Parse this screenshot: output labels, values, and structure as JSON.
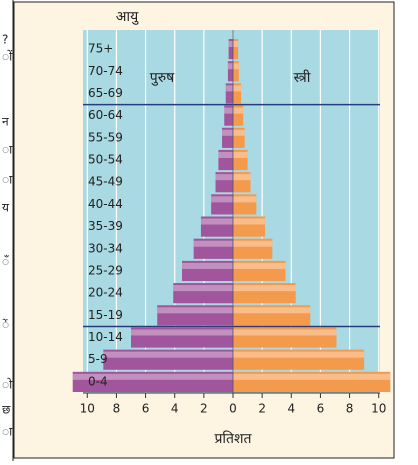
{
  "chart_data": {
    "type": "pyramid",
    "y_label": "आयु",
    "x_label": "प्रतिशत",
    "categories": [
      "0-4",
      "5-9",
      "10-14",
      "15-19",
      "20-24",
      "25-29",
      "30-34",
      "35-39",
      "40-44",
      "45-49",
      "50-54",
      "55-59",
      "60-64",
      "65-69",
      "70-74",
      "75+"
    ],
    "series": [
      {
        "name": "पुरुष",
        "color": "#a0559c",
        "values": [
          -11.0,
          -8.9,
          -7.0,
          -5.2,
          -4.1,
          -3.5,
          -2.7,
          -2.2,
          -1.5,
          -1.2,
          -1.0,
          -0.75,
          -0.6,
          -0.5,
          -0.35,
          -0.3
        ]
      },
      {
        "name": "स्त्री",
        "color": "#f49a4c",
        "values": [
          10.8,
          9.0,
          7.1,
          5.3,
          4.3,
          3.6,
          2.7,
          2.2,
          1.6,
          1.2,
          1.0,
          0.8,
          0.7,
          0.55,
          0.4,
          0.35
        ]
      }
    ],
    "xlim": [
      -10.5,
      10.5
    ],
    "xticks": [
      {
        "value": -10,
        "label": "10"
      },
      {
        "value": -8,
        "label": "8"
      },
      {
        "value": -6,
        "label": "6"
      },
      {
        "value": -4,
        "label": "4"
      },
      {
        "value": -2,
        "label": "2"
      },
      0,
      2,
      4,
      6,
      8,
      10
    ],
    "grid": true,
    "background": "#a9d9e3"
  },
  "page_fragments": [
    "?",
    "ों",
    "न",
    "ा",
    "ा",
    "य",
    "ँ",
    "ें",
    "ो",
    "छ",
    "ा"
  ]
}
